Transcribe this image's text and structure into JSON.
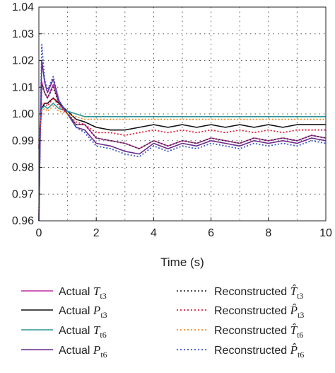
{
  "chart_data": {
    "type": "line",
    "title": "",
    "xlabel": "Time (s)",
    "ylabel": "",
    "xlim": [
      0,
      10
    ],
    "ylim": [
      0.96,
      1.04
    ],
    "x_ticks": [
      0,
      2,
      4,
      6,
      8,
      10
    ],
    "x_tick_labels": [
      "0",
      "2",
      "4",
      "6",
      "8",
      "10"
    ],
    "y_ticks": [
      0.96,
      0.97,
      0.98,
      0.99,
      1.0,
      1.01,
      1.02,
      1.03,
      1.04
    ],
    "y_tick_labels": [
      "0.96",
      "0.97",
      "0.98",
      "0.99",
      "1.00",
      "1.01",
      "1.02",
      "1.03",
      "1.04"
    ],
    "grid": "dotted",
    "legend_position": "bottom",
    "x": [
      0,
      0.05,
      0.1,
      0.2,
      0.3,
      0.5,
      0.7,
      1.0,
      1.3,
      1.6,
      2,
      2.5,
      3,
      3.5,
      4,
      4.5,
      5,
      5.5,
      6,
      6.5,
      7,
      7.5,
      8,
      8.5,
      9,
      9.5,
      10
    ],
    "series": [
      {
        "name": "Actual T",
        "sub": "t3",
        "color": "#c12fa6",
        "style": "solid",
        "values": [
          0.96,
          0.995,
          1.012,
          1.008,
          1.006,
          1.011,
          1.004,
          1.0,
          0.996,
          0.996,
          0.991,
          0.99,
          0.989,
          0.987,
          0.99,
          0.988,
          0.99,
          0.989,
          0.991,
          0.99,
          0.989,
          0.991,
          0.99,
          0.991,
          0.99,
          0.992,
          0.991
        ]
      },
      {
        "name": "Actual P",
        "sub": "t3",
        "color": "#111111",
        "style": "solid",
        "values": [
          0.987,
          0.995,
          1.002,
          1.004,
          1.004,
          1.006,
          1.004,
          1.001,
          0.998,
          0.997,
          0.995,
          0.994,
          0.994,
          0.995,
          0.996,
          0.995,
          0.996,
          0.995,
          0.996,
          0.995,
          0.996,
          0.995,
          0.996,
          0.995,
          0.996,
          0.996,
          0.996
        ]
      },
      {
        "name": "Actual T",
        "sub": "t6",
        "color": "#2e9595",
        "style": "solid",
        "values": [
          0.99,
          0.997,
          1.002,
          1.003,
          1.002,
          1.004,
          1.002,
          1.001,
          1.0,
          0.999,
          0.999,
          0.999,
          0.999,
          0.999,
          0.999,
          0.999,
          0.999,
          0.999,
          0.999,
          0.999,
          0.999,
          0.999,
          0.999,
          0.999,
          0.999,
          0.999,
          0.999
        ]
      },
      {
        "name": "Actual P",
        "sub": "t6",
        "color": "#6b2a8e",
        "style": "solid",
        "values": [
          0.96,
          0.994,
          1.02,
          1.012,
          1.008,
          1.013,
          1.005,
          1.0,
          0.995,
          0.994,
          0.989,
          0.988,
          0.986,
          0.985,
          0.989,
          0.987,
          0.989,
          0.988,
          0.99,
          0.989,
          0.988,
          0.99,
          0.989,
          0.99,
          0.989,
          0.991,
          0.99
        ]
      },
      {
        "name": "Reconstructed T̂",
        "sub": "t3",
        "color": "#333333",
        "style": "dotted",
        "values": [
          0.96,
          0.995,
          1.011,
          1.008,
          1.006,
          1.01,
          1.004,
          1.0,
          0.996,
          0.996,
          0.991,
          0.99,
          0.989,
          0.987,
          0.99,
          0.988,
          0.99,
          0.989,
          0.991,
          0.99,
          0.989,
          0.991,
          0.99,
          0.991,
          0.99,
          0.992,
          0.991
        ]
      },
      {
        "name": "Reconstructed P̂",
        "sub": "t3",
        "color": "#e0203a",
        "style": "dotted",
        "values": [
          0.988,
          0.995,
          1.004,
          1.004,
          1.003,
          1.006,
          1.003,
          1.0,
          0.997,
          0.996,
          0.993,
          0.993,
          0.992,
          0.993,
          0.994,
          0.993,
          0.994,
          0.993,
          0.994,
          0.993,
          0.994,
          0.993,
          0.994,
          0.993,
          0.994,
          0.994,
          0.994
        ]
      },
      {
        "name": "Reconstructed T̂",
        "sub": "t6",
        "color": "#f28c1e",
        "style": "dotted",
        "values": [
          0.99,
          0.996,
          1.001,
          1.002,
          1.001,
          1.003,
          1.001,
          1.0,
          0.999,
          0.998,
          0.998,
          0.998,
          0.998,
          0.998,
          0.998,
          0.998,
          0.998,
          0.998,
          0.998,
          0.998,
          0.998,
          0.998,
          0.998,
          0.998,
          0.998,
          0.998,
          0.998
        ]
      },
      {
        "name": "Reconstructed P̂",
        "sub": "t6",
        "color": "#3b56c8",
        "style": "dotted",
        "values": [
          0.96,
          0.994,
          1.026,
          1.013,
          1.009,
          1.014,
          1.005,
          1.0,
          0.995,
          0.993,
          0.988,
          0.987,
          0.985,
          0.984,
          0.988,
          0.986,
          0.988,
          0.987,
          0.989,
          0.988,
          0.987,
          0.989,
          0.988,
          0.989,
          0.988,
          0.99,
          0.989
        ]
      }
    ]
  }
}
